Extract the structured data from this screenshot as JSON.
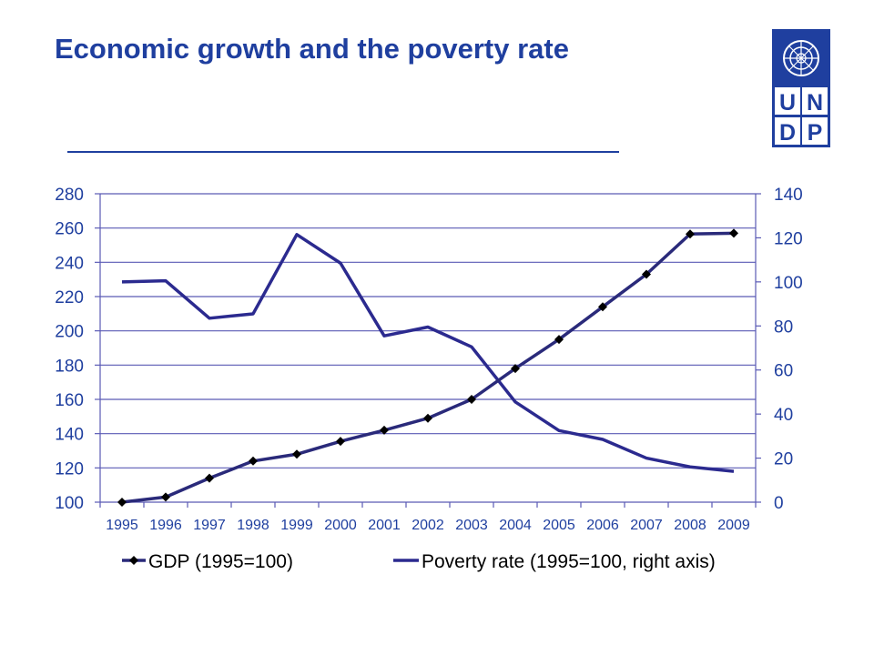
{
  "slide": {
    "title": "Economic growth and the poverty rate"
  },
  "logo": {
    "text": "UNDP",
    "letters": [
      "U",
      "N",
      "D",
      "P"
    ],
    "icon": "un-emblem-icon",
    "color": "#1f3f9f"
  },
  "colors": {
    "title": "#1f3f9f",
    "axis": "#1f3f9f",
    "gdp_line": "#2a2a7a",
    "poverty_line": "#2b2a8f",
    "gdp_marker": "#000000"
  },
  "chart_data": {
    "type": "line",
    "categories": [
      "1995",
      "1996",
      "1997",
      "1998",
      "1999",
      "2000",
      "2001",
      "2002",
      "2003",
      "2004",
      "2005",
      "2006",
      "2007",
      "2008",
      "2009"
    ],
    "series": [
      {
        "name": "GDP (1995=100)",
        "axis": "left",
        "marker": "diamond",
        "values": [
          100,
          103,
          114,
          124,
          128,
          135.5,
          142,
          149,
          160,
          178,
          195,
          214,
          233,
          256.5,
          257
        ]
      },
      {
        "name": "Poverty rate (1995=100, right axis)",
        "axis": "right",
        "marker": "none",
        "values": [
          100,
          100.5,
          83.5,
          85.5,
          121.5,
          108.5,
          75.5,
          79.5,
          70.5,
          45.5,
          32.5,
          28.5,
          20,
          16,
          14
        ]
      }
    ],
    "y_left": {
      "min": 100,
      "max": 280,
      "ticks": [
        100,
        120,
        140,
        160,
        180,
        200,
        220,
        240,
        260,
        280
      ]
    },
    "y_right": {
      "min": 0,
      "max": 140,
      "ticks": [
        0,
        20,
        40,
        60,
        80,
        100,
        120,
        140
      ]
    },
    "grid": true,
    "legend_position": "bottom"
  }
}
